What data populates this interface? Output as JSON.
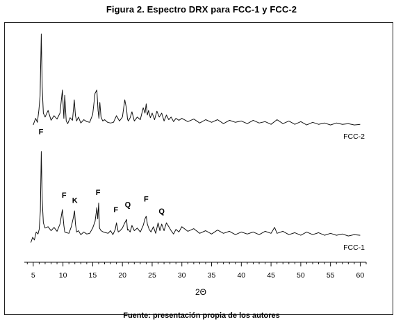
{
  "figure": {
    "title": "Figura 2. Espectro DRX para FCC-1 y FCC-2",
    "source": "Fuente: presentación propia de los autores"
  },
  "chart_data": {
    "type": "line",
    "xlabel": "2Θ",
    "ylabel": "",
    "xlim": [
      3.5,
      61
    ],
    "xticks": [
      5,
      10,
      15,
      20,
      25,
      30,
      35,
      40,
      45,
      50,
      55,
      60
    ],
    "grid": false,
    "series": [
      {
        "name": "FCC-2",
        "x": [
          5.0,
          5.4,
          5.7,
          5.95,
          6.15,
          6.35,
          6.5,
          6.7,
          7.0,
          7.5,
          8.0,
          8.5,
          9.0,
          9.5,
          9.9,
          10.15,
          10.3,
          10.55,
          10.8,
          11.2,
          11.6,
          11.9,
          12.1,
          12.3,
          12.6,
          13.0,
          13.5,
          14.0,
          14.5,
          15.0,
          15.4,
          15.7,
          15.9,
          16.05,
          16.2,
          16.4,
          16.7,
          17.0,
          17.5,
          18.0,
          18.5,
          19.0,
          19.5,
          20.0,
          20.4,
          20.7,
          20.85,
          21.0,
          21.3,
          21.6,
          22.0,
          22.5,
          23.0,
          23.5,
          23.8,
          24.0,
          24.2,
          24.4,
          24.7,
          25.0,
          25.4,
          25.8,
          26.2,
          26.6,
          27.0,
          27.4,
          27.8,
          28.2,
          28.6,
          29.0,
          29.5,
          30.0,
          31.0,
          32.0,
          33.0,
          34.0,
          35.0,
          36.0,
          37.0,
          38.0,
          39.0,
          40.0,
          41.0,
          42.0,
          43.0,
          44.0,
          45.0,
          46.0,
          47.0,
          48.0,
          49.0,
          50.0,
          51.0,
          52.0,
          53.0,
          54.0,
          55.0,
          56.0,
          57.0,
          58.0,
          59.0,
          60.0
        ],
        "y": [
          2,
          12,
          6,
          25,
          46,
          140,
          60,
          20,
          14,
          24,
          9,
          16,
          11,
          20,
          55,
          12,
          47,
          8,
          4,
          13,
          9,
          40,
          16,
          8,
          14,
          5,
          10,
          7,
          6,
          18,
          50,
          55,
          24,
          12,
          36,
          14,
          8,
          10,
          6,
          5,
          6,
          16,
          8,
          14,
          40,
          26,
          11,
          8,
          13,
          22,
          8,
          14,
          10,
          28,
          20,
          34,
          17,
          24,
          13,
          20,
          10,
          23,
          14,
          20,
          8,
          17,
          10,
          14,
          7,
          12,
          9,
          12,
          7,
          11,
          5,
          10,
          6,
          10,
          4,
          9,
          6,
          8,
          4,
          9,
          5,
          7,
          3,
          10,
          4,
          8,
          3,
          7,
          2,
          6,
          3,
          5,
          2,
          5,
          3,
          4,
          2,
          3
        ]
      },
      {
        "name": "FCC-1",
        "x": [
          4.6,
          4.9,
          5.2,
          5.5,
          5.8,
          6.0,
          6.2,
          6.35,
          6.5,
          6.7,
          7.0,
          7.5,
          8.0,
          8.5,
          9.0,
          9.5,
          9.9,
          10.15,
          10.3,
          10.6,
          11.0,
          11.4,
          11.7,
          11.95,
          12.1,
          12.3,
          12.6,
          13.0,
          13.5,
          14.0,
          14.5,
          15.0,
          15.4,
          15.7,
          15.85,
          16.0,
          16.15,
          16.4,
          16.8,
          17.2,
          17.6,
          18.0,
          18.4,
          18.8,
          19.0,
          19.3,
          19.6,
          20.0,
          20.4,
          20.7,
          20.85,
          21.0,
          21.3,
          21.6,
          22.0,
          22.5,
          23.0,
          23.5,
          23.8,
          24.0,
          24.2,
          24.5,
          24.8,
          25.2,
          25.6,
          26.0,
          26.3,
          26.6,
          27.0,
          27.4,
          27.8,
          28.2,
          28.6,
          29.0,
          29.5,
          30.0,
          31.0,
          32.0,
          33.0,
          34.0,
          35.0,
          36.0,
          37.0,
          38.0,
          39.0,
          40.0,
          41.0,
          42.0,
          43.0,
          44.0,
          45.0,
          45.6,
          46.0,
          47.0,
          48.0,
          49.0,
          50.0,
          51.0,
          52.0,
          53.0,
          54.0,
          55.0,
          56.0,
          57.0,
          58.0,
          59.0,
          60.0
        ],
        "y": [
          -8,
          0,
          -4,
          8,
          5,
          12,
          40,
          130,
          58,
          22,
          14,
          16,
          10,
          15,
          9,
          20,
          42,
          18,
          8,
          7,
          6,
          16,
          28,
          40,
          20,
          8,
          10,
          4,
          8,
          5,
          6,
          14,
          24,
          45,
          28,
          52,
          14,
          10,
          8,
          7,
          6,
          10,
          4,
          12,
          22,
          8,
          10,
          14,
          22,
          27,
          11,
          12,
          8,
          18,
          10,
          14,
          8,
          18,
          28,
          32,
          20,
          12,
          8,
          16,
          6,
          22,
          10,
          20,
          10,
          22,
          16,
          10,
          5,
          12,
          8,
          16,
          9,
          13,
          6,
          10,
          5,
          11,
          6,
          9,
          4,
          8,
          5,
          8,
          4,
          9,
          6,
          15,
          6,
          9,
          4,
          7,
          3,
          8,
          4,
          7,
          3,
          6,
          3,
          5,
          2,
          4,
          3
        ]
      }
    ],
    "annotations": [
      {
        "text": "F",
        "series": "FCC-2",
        "x": 6.3,
        "y": -12
      },
      {
        "text": "F",
        "series": "FCC-1",
        "x": 10.2,
        "y": 60
      },
      {
        "text": "K",
        "series": "FCC-1",
        "x": 12.0,
        "y": 52
      },
      {
        "text": "F",
        "series": "FCC-1",
        "x": 15.9,
        "y": 64
      },
      {
        "text": "F",
        "series": "FCC-1",
        "x": 18.9,
        "y": 38
      },
      {
        "text": "Q",
        "series": "FCC-1",
        "x": 20.9,
        "y": 46
      },
      {
        "text": "F",
        "series": "FCC-1",
        "x": 24.0,
        "y": 54
      },
      {
        "text": "Q",
        "series": "FCC-1",
        "x": 26.6,
        "y": 36
      }
    ]
  }
}
